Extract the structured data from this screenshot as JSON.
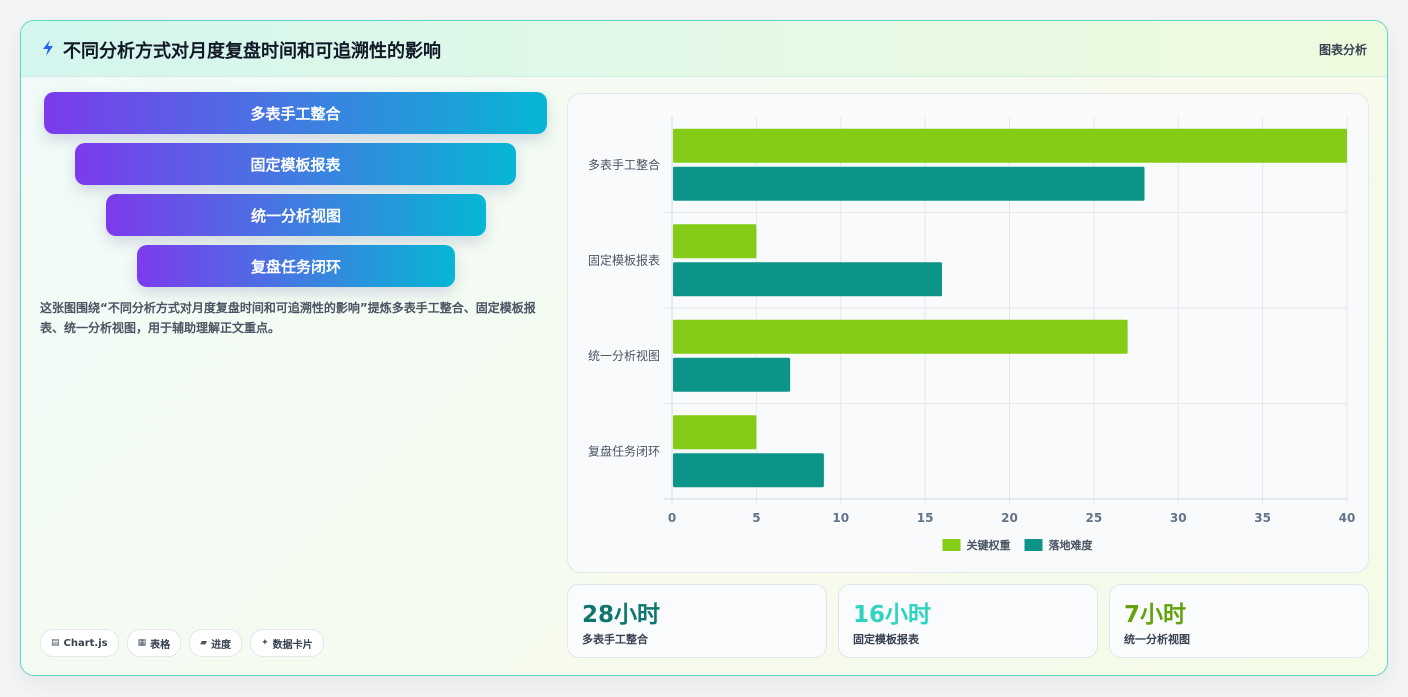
{
  "header": {
    "title": "不同分析方式对月度复盘时间和可追溯性的影响",
    "tag": "图表分析",
    "title_icon": "lightning-icon"
  },
  "funnel": {
    "items": [
      {
        "label": "多表手工整合"
      },
      {
        "label": "固定模板报表"
      },
      {
        "label": "统一分析视图"
      },
      {
        "label": "复盘任务闭环"
      }
    ]
  },
  "description": "这张图围绕“不同分析方式对月度复盘时间和可追溯性的影响”提炼多表手工整合、固定模板报表、统一分析视图，用于辅助理解正文重点。",
  "chips": [
    {
      "icon": "▤",
      "label": "Chart.js"
    },
    {
      "icon": "▦",
      "label": "表格"
    },
    {
      "icon": "▰",
      "label": "进度"
    },
    {
      "icon": "✦",
      "label": "数据卡片"
    }
  ],
  "chart_data": {
    "type": "bar",
    "orientation": "horizontal",
    "categories": [
      "多表手工整合",
      "固定模板报表",
      "统一分析视图",
      "复盘任务闭环"
    ],
    "series": [
      {
        "name": "关键权重",
        "color": "#84cc16",
        "values": [
          40,
          5,
          27,
          5
        ]
      },
      {
        "name": "落地难度",
        "color": "#0d9488",
        "values": [
          28,
          16,
          7,
          9
        ]
      }
    ],
    "xlim": [
      0,
      40
    ],
    "xticks": [
      0,
      5,
      10,
      15,
      20,
      25,
      30,
      35,
      40
    ],
    "grid": true,
    "legend_position": "bottom"
  },
  "stats": [
    {
      "value": "28小时",
      "label": "多表手工整合",
      "color": "#0f766e"
    },
    {
      "value": "16小时",
      "label": "固定模板报表",
      "color": "#2dd4bf"
    },
    {
      "value": "7小时",
      "label": "统一分析视图",
      "color": "#65a30d"
    }
  ]
}
